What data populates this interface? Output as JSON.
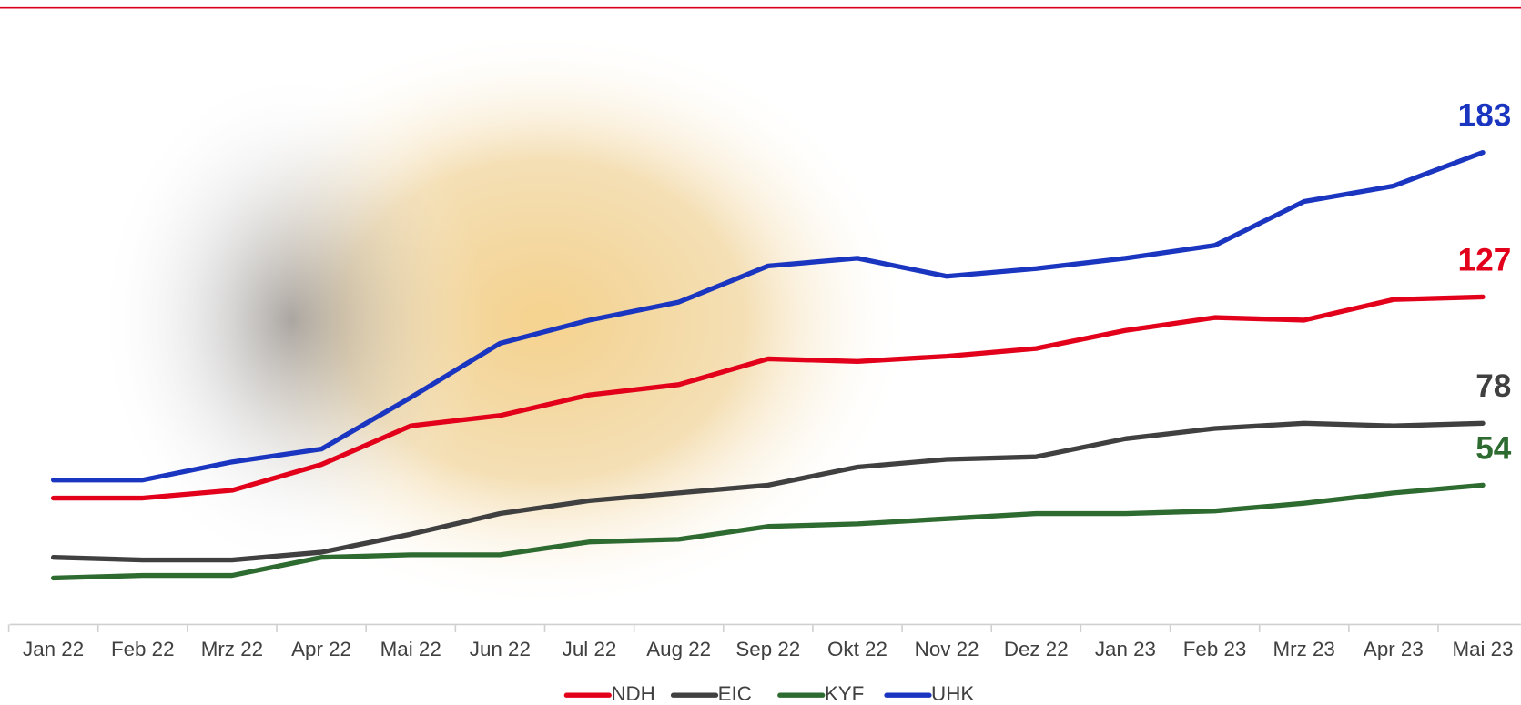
{
  "chart_data": {
    "type": "line",
    "categories": [
      "Jan 22",
      "Feb 22",
      "Mrz 22",
      "Apr 22",
      "Mai 22",
      "Jun 22",
      "Jul 22",
      "Aug 22",
      "Sep 22",
      "Okt 22",
      "Nov 22",
      "Dez 22",
      "Jan 23",
      "Feb 23",
      "Mrz 23",
      "Apr 23",
      "Mai 23"
    ],
    "series": [
      {
        "name": "NDH",
        "color": "#e2001a",
        "values": [
          49,
          49,
          52,
          62,
          77,
          81,
          89,
          93,
          103,
          102,
          104,
          107,
          114,
          119,
          118,
          126,
          127
        ]
      },
      {
        "name": "EIC",
        "color": "#404040",
        "values": [
          26,
          25,
          25,
          28,
          35,
          43,
          48,
          51,
          54,
          61,
          64,
          65,
          72,
          76,
          78,
          77,
          78
        ]
      },
      {
        "name": "KYF",
        "color": "#2e6b30",
        "values": [
          18,
          19,
          19,
          26,
          27,
          27,
          32,
          33,
          38,
          39,
          41,
          43,
          43,
          44,
          47,
          51,
          54
        ]
      },
      {
        "name": "UHK",
        "color": "#1a35c0",
        "values": [
          56,
          56,
          63,
          68,
          88,
          109,
          118,
          125,
          139,
          142,
          135,
          138,
          142,
          147,
          164,
          170,
          183
        ]
      }
    ],
    "ylim": [
      0,
      240
    ],
    "legend": "bottom"
  }
}
